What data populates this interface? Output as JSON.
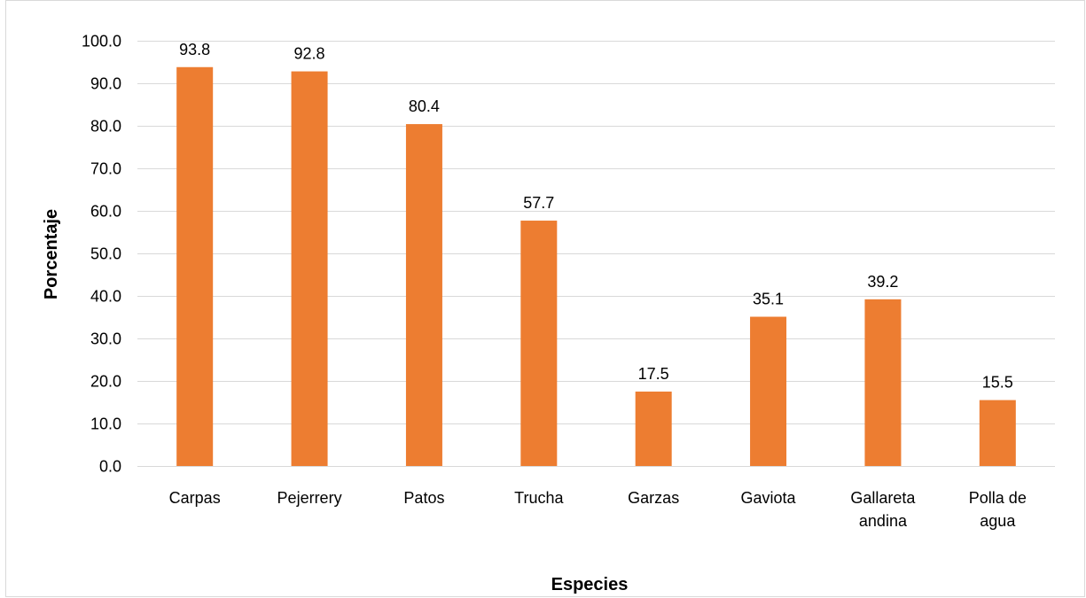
{
  "chart_data": {
    "type": "bar",
    "title": "",
    "xlabel": "Especies",
    "ylabel": "Porcentaje",
    "categories": [
      [
        "Carpas"
      ],
      [
        "Pejerrery"
      ],
      [
        "Patos"
      ],
      [
        "Trucha"
      ],
      [
        "Garzas"
      ],
      [
        "Gaviota"
      ],
      [
        "Gallareta",
        "andina"
      ],
      [
        "Polla de",
        "agua"
      ]
    ],
    "values": [
      93.8,
      92.8,
      80.4,
      57.7,
      17.5,
      35.1,
      39.2,
      15.5
    ],
    "data_labels": [
      "93.8",
      "92.8",
      "80.4",
      "57.7",
      "17.5",
      "35.1",
      "39.2",
      "15.5"
    ],
    "ylim": [
      0,
      100
    ],
    "yticks": [
      0,
      10,
      20,
      30,
      40,
      50,
      60,
      70,
      80,
      90,
      100
    ],
    "ytick_labels": [
      "0.0",
      "10.0",
      "20.0",
      "30.0",
      "40.0",
      "50.0",
      "60.0",
      "70.0",
      "80.0",
      "90.0",
      "100.0"
    ],
    "grid": true,
    "legend": "none",
    "colors": {
      "bar": "#ED7D31",
      "grid": "#D9D9D9",
      "frame": "#D9D9D9",
      "text": "#000000"
    }
  }
}
